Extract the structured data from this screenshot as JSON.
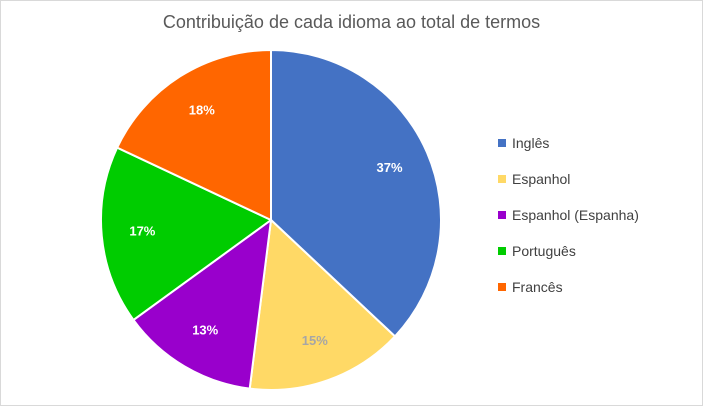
{
  "chart_data": {
    "type": "pie",
    "title": "Contribuição de cada idioma ao total de termos",
    "categories": [
      "Inglês",
      "Espanhol",
      "Espanhol (Espanha)",
      "Português",
      "Francês"
    ],
    "values": [
      37,
      15,
      13,
      17,
      18
    ],
    "labels": [
      "37%",
      "15%",
      "13%",
      "17%",
      "18%"
    ],
    "colors": [
      "#4472C4",
      "#FFD966",
      "#9900CC",
      "#00CC00",
      "#FF6600"
    ],
    "label_colors": [
      "#FFFFFF",
      "#A6A6A6",
      "#FFFFFF",
      "#FFFFFF",
      "#FFFFFF"
    ],
    "legend_position": "right",
    "start": "top",
    "direction": "clockwise"
  }
}
